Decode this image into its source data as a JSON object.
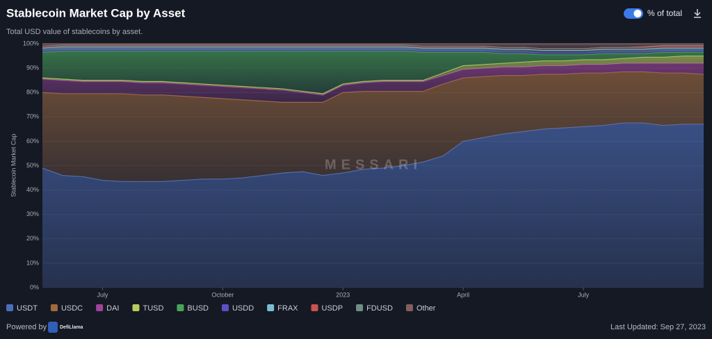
{
  "chart_data": {
    "type": "stacked_area",
    "title": "Stablecoin Market Cap by Asset",
    "subtitle": "Total USD value of stablecoins by asset.",
    "y_label": "Stablecoin Market Cap",
    "categories": [
      null,
      null,
      null,
      "July",
      null,
      null,
      null,
      null,
      null,
      "October",
      null,
      null,
      null,
      null,
      null,
      "2023",
      null,
      null,
      null,
      null,
      null,
      "April",
      null,
      null,
      null,
      null,
      null,
      "July",
      null,
      null,
      null,
      null,
      null,
      null
    ],
    "ylim": [
      0,
      100
    ],
    "yticks": [
      {
        "value": 0,
        "label": "0%"
      },
      {
        "value": 10,
        "label": "10%"
      },
      {
        "value": 20,
        "label": "20%"
      },
      {
        "value": 30,
        "label": "30%"
      },
      {
        "value": 40,
        "label": "40%"
      },
      {
        "value": 50,
        "label": "50%"
      },
      {
        "value": 60,
        "label": "60%"
      },
      {
        "value": 70,
        "label": "70%"
      },
      {
        "value": 80,
        "label": "80%"
      },
      {
        "value": 90,
        "label": "90%"
      },
      {
        "value": 100,
        "label": "100%"
      }
    ],
    "grid": true,
    "series": [
      {
        "name": "USDT",
        "color": "#4c6db8",
        "values": [
          49,
          46,
          45.5,
          44,
          43.5,
          43.5,
          43.5,
          44,
          44.5,
          44.5,
          45,
          46,
          47,
          47.5,
          46,
          47,
          48.5,
          49,
          50,
          51.5,
          54,
          60,
          61.5,
          63,
          64,
          65,
          65.5,
          66,
          66.5,
          67.5,
          67.5,
          66.5,
          67,
          67
        ]
      },
      {
        "name": "USDC",
        "color": "#a06a3c",
        "values": [
          31,
          33.5,
          34,
          35.5,
          36,
          35.5,
          35.5,
          34.5,
          33.5,
          33,
          32,
          30.5,
          29,
          28.5,
          30,
          33,
          32,
          31.5,
          30.5,
          29,
          29.5,
          26,
          25,
          24,
          23,
          22.5,
          22,
          22,
          21.5,
          21,
          21,
          21.5,
          21,
          20.5
        ]
      },
      {
        "name": "DAI",
        "color": "#a0449a",
        "values": [
          5.5,
          5.5,
          5,
          5,
          5,
          5,
          5,
          5,
          5,
          5,
          5,
          5,
          5,
          4,
          3,
          3,
          3.5,
          4,
          4,
          4,
          3.5,
          3.5,
          3.5,
          3.5,
          3.5,
          3.5,
          3.5,
          3.5,
          3.5,
          3.5,
          3.5,
          4,
          4,
          4.5
        ]
      },
      {
        "name": "TUSD",
        "color": "#b9cc5c",
        "values": [
          0.5,
          0.5,
          0.5,
          0.5,
          0.5,
          0.5,
          0.5,
          0.5,
          0.5,
          0.5,
          0.5,
          0.5,
          0.5,
          0.5,
          0.5,
          0.5,
          0.5,
          0.5,
          0.5,
          0.5,
          1,
          1.5,
          1.5,
          1.5,
          2,
          2,
          2,
          2,
          2,
          2,
          2.5,
          2.5,
          3,
          3
        ]
      },
      {
        "name": "BUSD",
        "color": "#48a457",
        "values": [
          10.5,
          11.5,
          12,
          12,
          12,
          12.5,
          12.5,
          13,
          13.5,
          14,
          14.5,
          15,
          15.5,
          16.5,
          17.5,
          13.5,
          12.5,
          12,
          12,
          11.5,
          8.5,
          5.5,
          5,
          4,
          3.5,
          2.5,
          2.5,
          2,
          2.5,
          2,
          1.5,
          2,
          1.5,
          1.5
        ]
      },
      {
        "name": "USDD",
        "color": "#5a50c8",
        "values": [
          0.6,
          0.6,
          0.6,
          0.6,
          0.6,
          0.6,
          0.6,
          0.6,
          0.6,
          0.6,
          0.6,
          0.6,
          0.6,
          0.6,
          0.6,
          0.6,
          0.6,
          0.6,
          0.6,
          0.6,
          0.6,
          0.6,
          0.6,
          0.6,
          0.6,
          0.6,
          0.6,
          0.6,
          0.6,
          0.6,
          0.6,
          0.6,
          0.6,
          0.6
        ]
      },
      {
        "name": "FRAX",
        "color": "#7cbcd4",
        "values": [
          1.2,
          1.2,
          1.2,
          1.2,
          1.2,
          1.2,
          1.2,
          1.2,
          1.2,
          1.2,
          1.2,
          1.2,
          1.2,
          1.2,
          1.2,
          1.2,
          1.2,
          1.2,
          1.2,
          1.2,
          1.2,
          1.2,
          1.2,
          1.2,
          1.2,
          1.2,
          1.2,
          1.2,
          1.2,
          1.2,
          1.2,
          1.2,
          1.2,
          1.2
        ]
      },
      {
        "name": "USDP",
        "color": "#c8534f",
        "values": [
          0.7,
          0.7,
          0.7,
          0.7,
          0.7,
          0.7,
          0.7,
          0.7,
          0.7,
          0.7,
          0.7,
          0.7,
          0.7,
          0.7,
          0.7,
          0.7,
          0.7,
          0.7,
          0.7,
          0.7,
          0.7,
          0.7,
          0.7,
          0.7,
          0.7,
          0.7,
          0.7,
          0.7,
          0.7,
          0.7,
          0.7,
          0.7,
          0.7,
          0.7
        ]
      },
      {
        "name": "FDUSD",
        "color": "#6f8f86",
        "values": [
          0,
          0,
          0,
          0,
          0,
          0,
          0,
          0,
          0,
          0,
          0,
          0,
          0,
          0,
          0,
          0,
          0,
          0,
          0,
          0,
          0,
          0,
          0,
          0,
          0,
          0,
          0,
          0,
          0,
          0,
          0.3,
          0.3,
          0.3,
          0.3
        ]
      },
      {
        "name": "Other",
        "color": "#845e5e",
        "values": [
          1,
          0.5,
          0.5,
          0.5,
          0.5,
          0.5,
          0.5,
          0.5,
          0.5,
          0.5,
          0.5,
          0.5,
          0.5,
          0.5,
          0.5,
          0.5,
          0.5,
          0.5,
          0.5,
          1,
          1,
          1,
          1,
          1.5,
          1.5,
          2,
          2,
          2,
          1.5,
          1.5,
          1.2,
          0.7,
          0.7,
          0.7
        ]
      }
    ]
  },
  "ui": {
    "toggle_label": "% of total",
    "powered_by": "Powered by",
    "brand": "DefiLlama",
    "last_updated": "Last Updated: Sep 27, 2023",
    "watermark": "MESSARI"
  }
}
